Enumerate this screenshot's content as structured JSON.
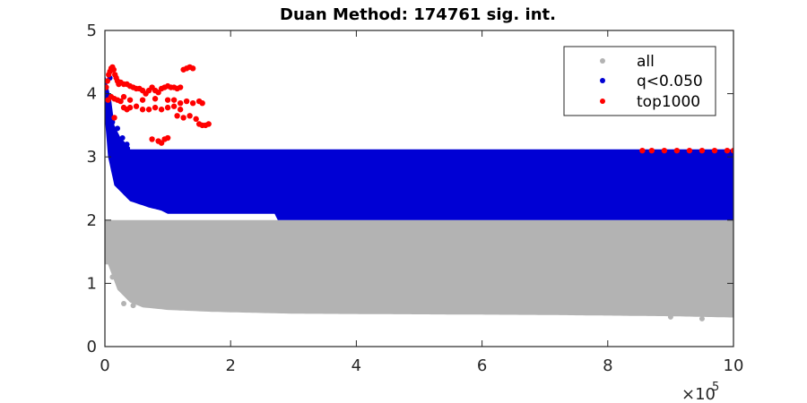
{
  "chart_data": {
    "type": "scatter",
    "title": "Duan Method: 174761 sig. int.",
    "xlabel": "",
    "ylabel": "",
    "xlim": [
      0,
      1000000
    ],
    "ylim": [
      0,
      5
    ],
    "x_ticks": [
      0,
      200000,
      400000,
      600000,
      800000,
      1000000
    ],
    "x_tick_labels": [
      "0",
      "2",
      "4",
      "6",
      "8",
      "10"
    ],
    "x_exponent_base": "×10",
    "x_exponent_power": "5",
    "y_ticks": [
      0,
      1,
      2,
      3,
      4,
      5
    ],
    "y_tick_labels": [
      "0",
      "1",
      "2",
      "3",
      "4",
      "5"
    ],
    "grid": false,
    "legend_position": "top-right",
    "series": [
      {
        "name": "all",
        "color": "#b3b3b3",
        "region": {
          "x": [
            0,
            1000000
          ],
          "lower_envelope": [
            [
              5000,
              1.3
            ],
            [
              20000,
              0.9
            ],
            [
              40000,
              0.7
            ],
            [
              60000,
              0.62
            ],
            [
              100000,
              0.58
            ],
            [
              170000,
              0.55
            ],
            [
              300000,
              0.52
            ],
            [
              500000,
              0.51
            ],
            [
              700000,
              0.5
            ],
            [
              900000,
              0.48
            ],
            [
              1000000,
              0.46
            ]
          ],
          "upper_y": 2.0
        },
        "points": [
          [
            30000,
            0.68
          ],
          [
            45000,
            0.65
          ],
          [
            12000,
            1.1
          ],
          [
            950000,
            0.44
          ],
          [
            900000,
            0.47
          ]
        ]
      },
      {
        "name": "q<0.050",
        "color": "#0000d4",
        "region": {
          "lower_envelope": [
            [
              0,
              3.6
            ],
            [
              5000,
              3.0
            ],
            [
              15000,
              2.55
            ],
            [
              40000,
              2.3
            ],
            [
              70000,
              2.2
            ],
            [
              90000,
              2.15
            ],
            [
              100000,
              2.1
            ],
            [
              270000,
              2.1
            ],
            [
              275000,
              2.0
            ],
            [
              1000000,
              2.0
            ]
          ],
          "upper_y": 3.12,
          "early_upper": [
            [
              0,
              4.3
            ],
            [
              5000,
              4.1
            ],
            [
              10000,
              3.9
            ],
            [
              15000,
              3.5
            ],
            [
              25000,
              3.3
            ],
            [
              40000,
              3.15
            ]
          ]
        },
        "points": [
          [
            8000,
            4.25
          ],
          [
            12000,
            3.55
          ],
          [
            20000,
            3.45
          ],
          [
            28000,
            3.3
          ],
          [
            35000,
            3.2
          ],
          [
            650000,
            2.68
          ]
        ]
      },
      {
        "name": "top1000",
        "color": "#ff0000",
        "points": [
          [
            2000,
            4.1
          ],
          [
            4000,
            4.2
          ],
          [
            6000,
            4.3
          ],
          [
            8000,
            4.35
          ],
          [
            10000,
            4.4
          ],
          [
            12000,
            4.42
          ],
          [
            14000,
            4.38
          ],
          [
            16000,
            4.3
          ],
          [
            18000,
            4.25
          ],
          [
            20000,
            4.2
          ],
          [
            22000,
            4.15
          ],
          [
            25000,
            4.18
          ],
          [
            30000,
            4.15
          ],
          [
            35000,
            4.15
          ],
          [
            40000,
            4.12
          ],
          [
            45000,
            4.1
          ],
          [
            50000,
            4.08
          ],
          [
            55000,
            4.08
          ],
          [
            60000,
            4.05
          ],
          [
            65000,
            4.0
          ],
          [
            70000,
            4.05
          ],
          [
            75000,
            4.1
          ],
          [
            80000,
            4.05
          ],
          [
            85000,
            4.02
          ],
          [
            90000,
            4.08
          ],
          [
            95000,
            4.1
          ],
          [
            100000,
            4.12
          ],
          [
            105000,
            4.1
          ],
          [
            110000,
            4.1
          ],
          [
            115000,
            4.08
          ],
          [
            120000,
            4.1
          ],
          [
            125000,
            4.38
          ],
          [
            130000,
            4.4
          ],
          [
            135000,
            4.42
          ],
          [
            140000,
            4.4
          ],
          [
            5000,
            3.9
          ],
          [
            10000,
            3.95
          ],
          [
            15000,
            3.92
          ],
          [
            20000,
            3.9
          ],
          [
            25000,
            3.88
          ],
          [
            30000,
            3.95
          ],
          [
            40000,
            3.9
          ],
          [
            60000,
            3.9
          ],
          [
            80000,
            3.92
          ],
          [
            100000,
            3.9
          ],
          [
            110000,
            3.9
          ],
          [
            120000,
            3.85
          ],
          [
            130000,
            3.88
          ],
          [
            140000,
            3.85
          ],
          [
            150000,
            3.88
          ],
          [
            155000,
            3.85
          ],
          [
            30000,
            3.78
          ],
          [
            35000,
            3.75
          ],
          [
            40000,
            3.78
          ],
          [
            50000,
            3.8
          ],
          [
            60000,
            3.75
          ],
          [
            70000,
            3.75
          ],
          [
            80000,
            3.78
          ],
          [
            90000,
            3.75
          ],
          [
            100000,
            3.78
          ],
          [
            110000,
            3.8
          ],
          [
            120000,
            3.75
          ],
          [
            115000,
            3.65
          ],
          [
            125000,
            3.62
          ],
          [
            135000,
            3.65
          ],
          [
            145000,
            3.6
          ],
          [
            150000,
            3.52
          ],
          [
            155000,
            3.5
          ],
          [
            160000,
            3.5
          ],
          [
            165000,
            3.52
          ],
          [
            15000,
            3.62
          ],
          [
            75000,
            3.28
          ],
          [
            85000,
            3.25
          ],
          [
            90000,
            3.22
          ],
          [
            95000,
            3.28
          ],
          [
            100000,
            3.3
          ],
          [
            855000,
            3.1
          ],
          [
            870000,
            3.1
          ],
          [
            890000,
            3.1
          ],
          [
            910000,
            3.1
          ],
          [
            930000,
            3.1
          ],
          [
            950000,
            3.1
          ],
          [
            970000,
            3.1
          ],
          [
            990000,
            3.1
          ],
          [
            1000000,
            3.1
          ]
        ]
      }
    ]
  }
}
